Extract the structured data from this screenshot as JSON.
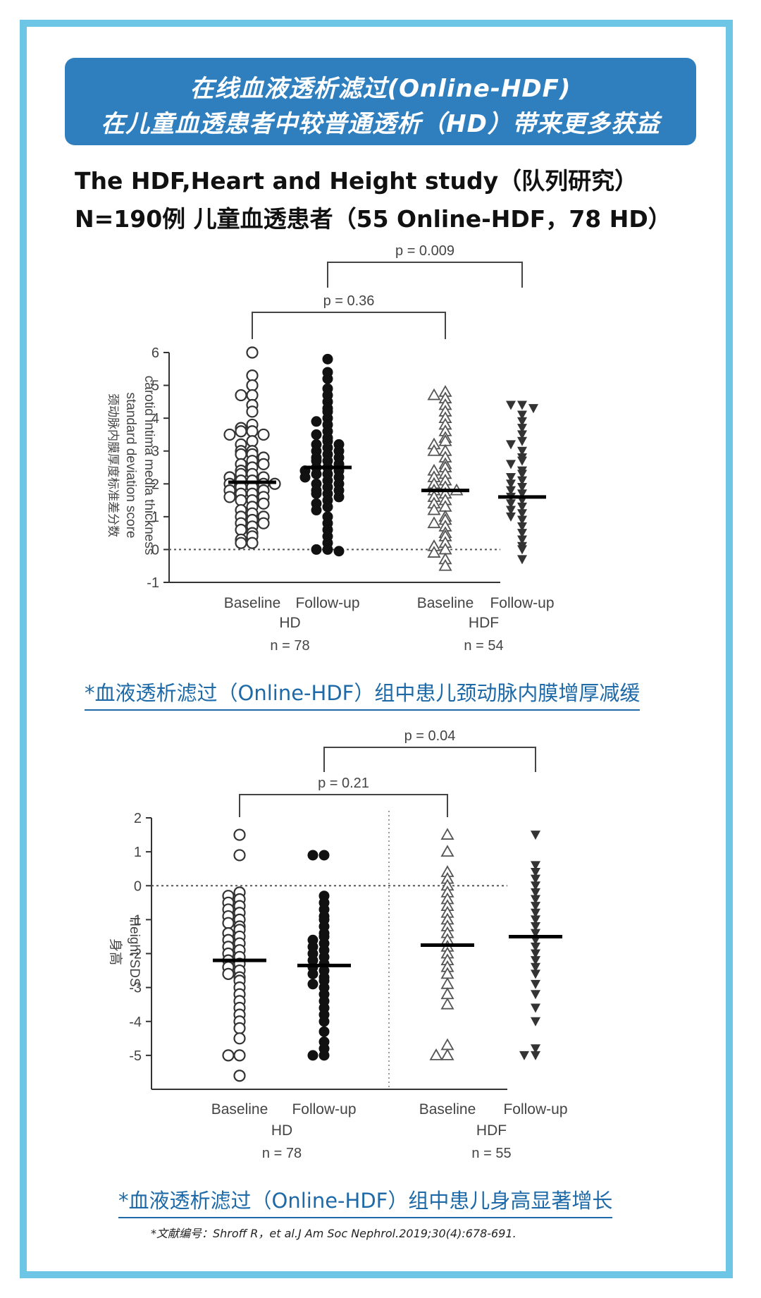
{
  "banner": {
    "line1": "在线血液透析滤过(Online-HDF)",
    "line2": "在儿童血透患者中较普通透析（HD）带来更多获益"
  },
  "study": {
    "line1": "The HDF,Heart and Height study（队列研究）",
    "line2": "N=190例  儿童血透患者（55 Online-HDF，78 HD）"
  },
  "caption1": "*血液透析滤过（Online-HDF）组中患儿颈动脉内膜增厚减缓",
  "caption2": "*血液透析滤过（Online-HDF）组中患儿身高显著增长",
  "reference": "*文献编号：Shroff R，et al.J Am Soc Nephrol.2019;30(4):678-691.",
  "colors": {
    "frame": "#6ec6e6",
    "banner": "#2f7fbf",
    "caption": "#1e6aa8"
  },
  "chart_data": [
    {
      "type": "scatter",
      "ylabel_lines": [
        "carotid intima media thickness",
        "standard deviation score",
        "颈动脉内膜厚度标准差分数"
      ],
      "ylim": [
        -1,
        6
      ],
      "yticks": [
        "6",
        "5",
        "4",
        "3",
        "2",
        "1",
        "0",
        "-1"
      ],
      "reference_line": 0,
      "groups": [
        {
          "name": "HD",
          "n_label": "n = 78",
          "categories": [
            "Baseline",
            "Follow-up"
          ]
        },
        {
          "name": "HDF",
          "n_label": "n = 54",
          "categories": [
            "Baseline",
            "Follow-up"
          ]
        }
      ],
      "comparisons": [
        {
          "label": "p = 0.36",
          "from": 0,
          "to": 2
        },
        {
          "label": "p = 0.009",
          "from": 1,
          "to": 3
        }
      ],
      "series": [
        {
          "marker": "open-circle",
          "category": "Baseline",
          "group": "HD",
          "median": 2.05,
          "values": [
            6.0,
            5.3,
            5.0,
            4.7,
            4.7,
            4.4,
            4.2,
            3.8,
            3.7,
            3.6,
            3.6,
            3.5,
            3.5,
            3.3,
            3.2,
            3.0,
            3.0,
            2.9,
            2.9,
            2.8,
            2.7,
            2.6,
            2.6,
            2.5,
            2.4,
            2.3,
            2.3,
            2.2,
            2.2,
            2.1,
            2.1,
            2.0,
            2.0,
            2.0,
            1.9,
            1.9,
            1.8,
            1.8,
            1.7,
            1.7,
            1.6,
            1.6,
            1.5,
            1.5,
            1.4,
            1.3,
            1.2,
            1.1,
            1.0,
            1.0,
            0.9,
            0.8,
            0.8,
            0.7,
            0.6,
            0.5,
            0.4,
            0.3,
            0.2,
            0.2
          ]
        },
        {
          "marker": "filled-circle",
          "category": "Follow-up",
          "group": "HD",
          "median": 2.5,
          "values": [
            5.8,
            5.4,
            5.2,
            4.9,
            4.7,
            4.5,
            4.3,
            4.2,
            4.0,
            3.9,
            3.8,
            3.6,
            3.5,
            3.4,
            3.3,
            3.2,
            3.2,
            3.1,
            3.0,
            3.0,
            2.9,
            2.8,
            2.8,
            2.7,
            2.7,
            2.6,
            2.5,
            2.5,
            2.4,
            2.4,
            2.3,
            2.3,
            2.2,
            2.2,
            2.1,
            2.0,
            2.0,
            1.9,
            1.8,
            1.8,
            1.7,
            1.7,
            1.6,
            1.5,
            1.4,
            1.3,
            1.2,
            1.0,
            0.8,
            0.6,
            0.4,
            0.2,
            0.0,
            0.0,
            -0.05
          ]
        },
        {
          "marker": "open-triangle-up",
          "category": "Baseline",
          "group": "HDF",
          "median": 1.8,
          "values": [
            4.8,
            4.7,
            4.6,
            4.4,
            4.2,
            4.0,
            3.8,
            3.6,
            3.4,
            3.3,
            3.2,
            3.0,
            3.0,
            2.8,
            2.6,
            2.5,
            2.4,
            2.3,
            2.2,
            2.1,
            2.0,
            1.9,
            1.8,
            1.8,
            1.7,
            1.6,
            1.5,
            1.4,
            1.3,
            1.2,
            1.0,
            0.9,
            0.8,
            0.7,
            0.5,
            0.4,
            0.2,
            0.1,
            0.0,
            -0.1,
            -0.3,
            -0.5
          ]
        },
        {
          "marker": "filled-triangle-down",
          "category": "Follow-up",
          "group": "HDF",
          "median": 1.6,
          "values": [
            4.4,
            4.4,
            4.3,
            4.1,
            3.9,
            3.7,
            3.5,
            3.3,
            3.2,
            3.0,
            2.8,
            2.7,
            2.6,
            2.4,
            2.3,
            2.2,
            2.1,
            2.0,
            1.9,
            1.8,
            1.7,
            1.6,
            1.5,
            1.4,
            1.3,
            1.2,
            1.1,
            1.0,
            0.9,
            0.7,
            0.5,
            0.3,
            0.1,
            0.0,
            -0.3
          ]
        }
      ]
    },
    {
      "type": "scatter",
      "ylabel_lines": [
        "Height SDS",
        "身高"
      ],
      "ylim": [
        -6,
        2
      ],
      "yticks": [
        "2",
        "1",
        "0",
        "-1",
        "-2",
        "-3",
        "-4",
        "-5"
      ],
      "reference_line": 0,
      "groups": [
        {
          "name": "HD",
          "n_label": "n = 78",
          "categories": [
            "Baseline",
            "Follow-up"
          ]
        },
        {
          "name": "HDF",
          "n_label": "n = 55",
          "categories": [
            "Baseline",
            "Follow-up"
          ]
        }
      ],
      "comparisons": [
        {
          "label": "p = 0.21",
          "from": 0,
          "to": 2
        },
        {
          "label": "p = 0.04",
          "from": 1,
          "to": 3
        }
      ],
      "series": [
        {
          "marker": "open-circle",
          "category": "Baseline",
          "group": "HD",
          "median": -2.2,
          "values": [
            1.5,
            0.9,
            -0.2,
            -0.3,
            -0.4,
            -0.5,
            -0.6,
            -0.7,
            -0.8,
            -0.9,
            -1.0,
            -1.1,
            -1.2,
            -1.3,
            -1.4,
            -1.5,
            -1.6,
            -1.7,
            -1.8,
            -1.9,
            -2.0,
            -2.1,
            -2.2,
            -2.3,
            -2.4,
            -2.5,
            -2.6,
            -2.7,
            -2.8,
            -3.0,
            -3.2,
            -3.4,
            -3.6,
            -3.8,
            -4.0,
            -4.2,
            -4.5,
            -5.0,
            -5.0,
            -5.6
          ]
        },
        {
          "marker": "filled-circle",
          "category": "Follow-up",
          "group": "HD",
          "median": -2.35,
          "values": [
            0.9,
            0.9,
            -0.3,
            -0.5,
            -0.7,
            -0.9,
            -1.0,
            -1.2,
            -1.4,
            -1.5,
            -1.6,
            -1.7,
            -1.8,
            -1.9,
            -2.0,
            -2.1,
            -2.2,
            -2.3,
            -2.4,
            -2.5,
            -2.6,
            -2.7,
            -2.8,
            -2.9,
            -3.0,
            -3.2,
            -3.4,
            -3.6,
            -3.8,
            -4.0,
            -4.3,
            -4.6,
            -4.8,
            -5.0,
            -5.0
          ]
        },
        {
          "marker": "open-triangle-up",
          "category": "Baseline",
          "group": "HDF",
          "median": -1.75,
          "values": [
            1.5,
            1.0,
            0.4,
            0.2,
            0.0,
            -0.2,
            -0.4,
            -0.6,
            -0.8,
            -1.0,
            -1.2,
            -1.4,
            -1.6,
            -1.8,
            -2.0,
            -2.2,
            -2.4,
            -2.6,
            -2.9,
            -3.2,
            -3.5,
            -4.7,
            -5.0,
            -5.0
          ]
        },
        {
          "marker": "filled-triangle-down",
          "category": "Follow-up",
          "group": "HDF",
          "median": -1.5,
          "values": [
            1.5,
            0.6,
            0.4,
            0.2,
            0.0,
            -0.2,
            -0.4,
            -0.6,
            -0.8,
            -1.0,
            -1.2,
            -1.4,
            -1.6,
            -1.8,
            -2.0,
            -2.2,
            -2.4,
            -2.6,
            -2.9,
            -3.2,
            -3.6,
            -4.0,
            -4.8,
            -5.0,
            -5.0
          ]
        }
      ]
    }
  ]
}
